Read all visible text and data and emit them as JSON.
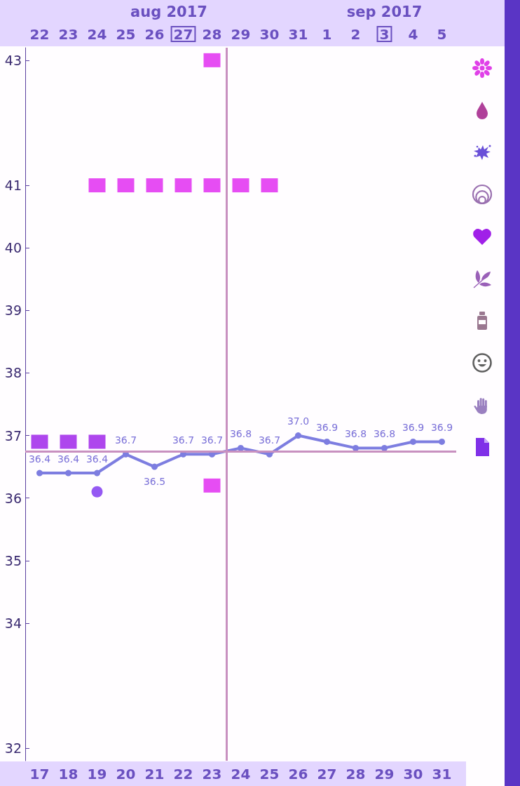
{
  "chart_data": {
    "type": "line",
    "x": [
      17,
      18,
      19,
      20,
      21,
      22,
      23,
      24,
      25,
      26,
      27,
      28,
      29,
      30,
      31
    ],
    "xlim": [
      16.5,
      31.5
    ],
    "xticks": [
      17,
      18,
      19,
      20,
      21,
      22,
      23,
      24,
      25,
      26,
      27,
      28,
      29,
      30,
      31
    ],
    "x2lim": [
      "2017-08-21T12:00",
      "2017-09-05T12:00"
    ],
    "x2ticks": [
      {
        "value": "2017-08-22",
        "label": "22"
      },
      {
        "value": "2017-08-23",
        "label": "23"
      },
      {
        "value": "2017-08-24",
        "label": "24"
      },
      {
        "value": "2017-08-25",
        "label": "25"
      },
      {
        "value": "2017-08-26",
        "label": "26"
      },
      {
        "value": "2017-08-27",
        "label": "27"
      },
      {
        "value": "2017-08-28",
        "label": "28"
      },
      {
        "value": "2017-08-29",
        "label": "29"
      },
      {
        "value": "2017-08-30",
        "label": "30"
      },
      {
        "value": "2017-08-31",
        "label": "31"
      },
      {
        "value": "2017-09-01",
        "label": "1"
      },
      {
        "value": "2017-09-02",
        "label": "2"
      },
      {
        "value": "2017-09-03",
        "label": "3"
      },
      {
        "value": "2017-09-04",
        "label": "4"
      },
      {
        "value": "2017-09-05",
        "label": "5"
      }
    ],
    "ylim": [
      31.8,
      43.2
    ],
    "yticks": [
      32,
      34,
      35,
      36,
      37,
      38,
      39,
      40,
      41,
      43
    ],
    "series": [
      {
        "color": "#7d7de0",
        "marker": "circle",
        "values": [
          36.4,
          36.4,
          36.4,
          36.7,
          36.5,
          36.7,
          36.7,
          36.8,
          36.7,
          37.0,
          36.9,
          36.8,
          36.8,
          36.9,
          36.9
        ],
        "value_labels": [
          "36.4",
          "36.4",
          "36.4",
          "36.7",
          "36.5",
          "36.7",
          "36.7",
          "36.8",
          "36.7",
          "37.0",
          "36.9",
          "36.8",
          "36.8",
          "36.9",
          "36.9"
        ]
      },
      {
        "type": "scatter",
        "color": "#e020f0",
        "marker": "square",
        "x": [
          19,
          20,
          21,
          22,
          23,
          24,
          25,
          23,
          23
        ],
        "values": [
          41,
          41,
          41,
          41,
          41,
          41,
          41,
          43,
          36.2
        ]
      },
      {
        "type": "scatter",
        "color": "#9a18e8",
        "marker": "square",
        "x": [
          17,
          18,
          19
        ],
        "values": [
          36.9,
          36.9,
          36.9
        ]
      },
      {
        "type": "scatter",
        "color": "#7a30f0",
        "marker": "circle",
        "x": [
          19
        ],
        "values": [
          36.1
        ]
      }
    ],
    "ref_lines": [
      {
        "axis": "y",
        "value": 36.75,
        "color": "#c890c0"
      },
      {
        "axis": "x",
        "value": 23.5,
        "color": "#c890c0"
      }
    ],
    "annotations": [
      "aug 2017",
      "sep 2017"
    ]
  }
}
